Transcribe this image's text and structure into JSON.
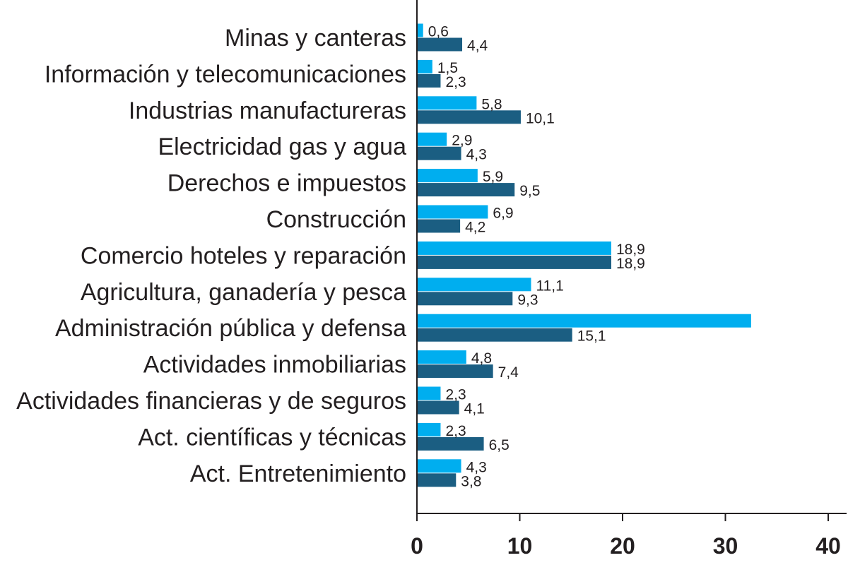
{
  "chart_data": {
    "type": "bar",
    "orientation": "horizontal",
    "title": "",
    "xlabel": "",
    "ylabel": "",
    "xlim": [
      0,
      40
    ],
    "xticks": [
      0,
      10,
      20,
      30,
      40
    ],
    "grid": false,
    "legend": "none",
    "categories": [
      "Minas y canteras",
      "Información y telecomunicaciones",
      "Industrias manufactureras",
      "Electricidad gas y agua",
      "Derechos e impuestos",
      "Construcción",
      "Comercio hoteles y reparación",
      "Agricultura, ganadería y pesca",
      "Administración pública y defensa",
      "Actividades inmobiliarias",
      "Actividades financieras y de seguros",
      "Act. científicas y técnicas",
      "Act. Entretenimiento"
    ],
    "series": [
      {
        "color": "#00aeef",
        "values": [
          0.6,
          1.5,
          5.8,
          2.9,
          5.9,
          6.9,
          18.9,
          11.1,
          32.5,
          4.8,
          2.3,
          2.3,
          4.3
        ],
        "labels": [
          "0,6",
          "1,5",
          "5,8",
          "2,9",
          "5,9",
          "6,9",
          "18,9",
          "11,1",
          "",
          "4,8",
          "2,3",
          "2,3",
          "4,3"
        ]
      },
      {
        "color": "#1b5e82",
        "values": [
          4.4,
          2.3,
          10.1,
          4.3,
          9.5,
          4.2,
          18.9,
          9.3,
          15.1,
          7.4,
          4.1,
          6.5,
          3.8
        ],
        "labels": [
          "4,4",
          "2,3",
          "10,1",
          "4,3",
          "9,5",
          "4,2",
          "18,9",
          "9,3",
          "15,1",
          "7,4",
          "4,1",
          "6,5",
          "3,8"
        ]
      }
    ]
  }
}
